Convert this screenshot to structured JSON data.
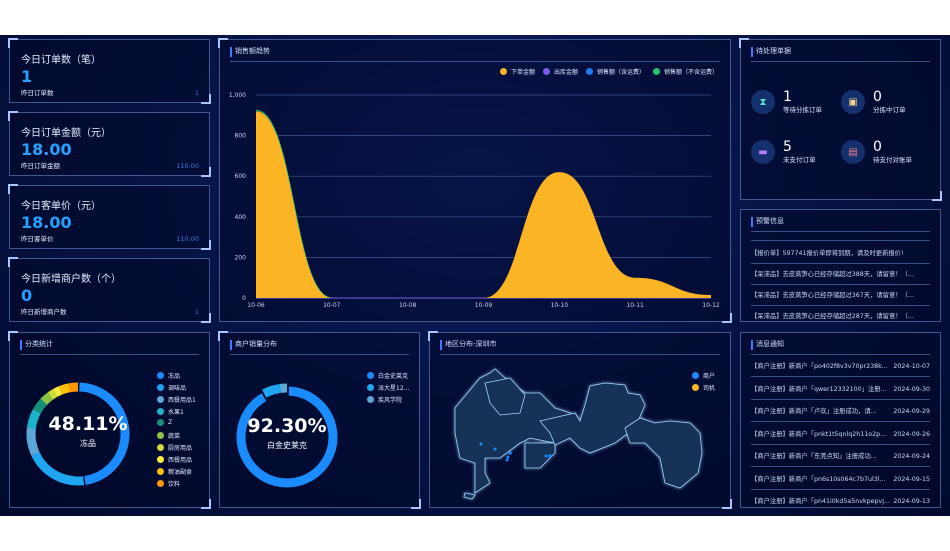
{
  "stats": [
    {
      "title": "今日订单数（笔）",
      "value": "1",
      "sub_label": "昨日订单数",
      "sub_value": "1"
    },
    {
      "title": "今日订单金额（元）",
      "value": "18.00",
      "sub_label": "昨日订单金额",
      "sub_value": "110.00"
    },
    {
      "title": "今日客单价（元）",
      "value": "18.00",
      "sub_label": "昨日客单价",
      "sub_value": "110.00"
    },
    {
      "title": "今日新增商户数（个）",
      "value": "0",
      "sub_label": "昨日新增商户数",
      "sub_value": "1"
    }
  ],
  "trend": {
    "title": "销售额趋势"
  },
  "chart_data": [
    {
      "type": "area",
      "title": "销售额趋势",
      "categories": [
        "10-06",
        "10-07",
        "10-08",
        "10-09",
        "10-10",
        "10-11",
        "10-12"
      ],
      "yticks": [
        "0",
        "200",
        "400",
        "600",
        "800",
        "1,000"
      ],
      "ylim": [
        0,
        1000
      ],
      "grid": true,
      "legend": "top-right",
      "series": [
        {
          "name": "下单金额",
          "color": "#fbb524",
          "values": [
            920,
            0,
            0,
            0,
            620,
            100,
            15
          ]
        },
        {
          "name": "出库金额",
          "color": "#7b5cf0",
          "values": [
            0,
            0,
            0,
            0,
            0,
            0,
            0
          ]
        },
        {
          "name": "销售额（含运费）",
          "color": "#1c7cf5",
          "values": [
            0,
            0,
            0,
            0,
            0,
            0,
            0
          ]
        },
        {
          "name": "销售额（不含运费）",
          "color": "#22c46b",
          "values": [
            925,
            0,
            0,
            0,
            0,
            0,
            0
          ]
        }
      ]
    },
    {
      "type": "pie",
      "title": "分类统计",
      "center_value": "48.11%",
      "center_label": "冻品",
      "slices": [
        {
          "name": "冻品",
          "value": 48.11,
          "color": "#1a8cff"
        },
        {
          "name": "调味品",
          "value": 19.89,
          "color": "#1ea6f0"
        },
        {
          "name": "西餐用品1",
          "value": 9,
          "color": "#5aa7d8"
        },
        {
          "name": "水果1",
          "value": 6,
          "color": "#1bb3c9"
        },
        {
          "name": "Z",
          "value": 4,
          "color": "#13907a"
        },
        {
          "name": "蔬菜",
          "value": 3,
          "color": "#8bc34a"
        },
        {
          "name": "厨房用品",
          "value": 2,
          "color": "#cddc39"
        },
        {
          "name": "西餐用品",
          "value": 2,
          "color": "#ffeb3b"
        },
        {
          "name": "粮油副食",
          "value": 3,
          "color": "#ffc107"
        },
        {
          "name": "饮料",
          "value": 3,
          "color": "#ff9800"
        }
      ]
    },
    {
      "type": "pie",
      "title": "商户销量分布",
      "center_value": "92.30%",
      "center_label": "白金史莱克",
      "slices": [
        {
          "name": "白金史莱克",
          "value": 92.3,
          "color": "#1a8cff"
        },
        {
          "name": "派大星12...",
          "value": 5.5,
          "color": "#1ea6f0"
        },
        {
          "name": "疾风学院",
          "value": 2.2,
          "color": "#5aa7d8"
        }
      ]
    }
  ],
  "pending": {
    "title": "待处理单据",
    "items": [
      {
        "value": "1",
        "label": "等待分拣订单",
        "icon": "hourglass-icon",
        "color": "#5de0d0",
        "glyph": "⧗"
      },
      {
        "value": "0",
        "label": "分拣中订单",
        "icon": "box-icon",
        "color": "#f6d58a",
        "glyph": "▣"
      },
      {
        "value": "5",
        "label": "未支付订单",
        "icon": "wallet-icon",
        "color": "#b57cff",
        "glyph": "▬"
      },
      {
        "value": "0",
        "label": "待支付对账单",
        "icon": "bill-icon",
        "color": "#ff7a8a",
        "glyph": "▤"
      }
    ]
  },
  "warnings": {
    "title": "预警信息",
    "items": [
      "【报价单】597741报价单即将到期，请及时更新报价!",
      "【呆滞品】去皮莴笋心已经存储超过388天，请留意！（...",
      "【呆滞品】去皮莴笋心已经存储超过367天，请留意！（...",
      "【呆滞品】去皮莴笋心已经存储超过287天，请留意！（..."
    ]
  },
  "map": {
    "title": "地区分布-深圳市",
    "legend": [
      {
        "name": "商户",
        "color": "#1a8cff"
      },
      {
        "name": "司机",
        "color": "#fbb524"
      }
    ]
  },
  "notices": {
    "title": "消息通知",
    "items": [
      {
        "text": "【商户注册】新商户「po402f8v3v70pr238k...",
        "date": "2024-10-07"
      },
      {
        "text": "【商户注册】新商户「qwer12332100」注册...",
        "date": "2024-09-30"
      },
      {
        "text": "【商户注册】新商户「卢欢」注册成功，请...",
        "date": "2024-09-29"
      },
      {
        "text": "【商户注册】新商户「pnkt1t5qnlq2h11o2p...",
        "date": "2024-09-26"
      },
      {
        "text": "【商户注册】新商户「东莞点知」注册成功...",
        "date": "2024-09-24"
      },
      {
        "text": "【商户注册】新商户「pn6s10s064c7b7ul3l...",
        "date": "2024-09-15"
      },
      {
        "text": "【商户注册】新商户「pn41i0kd5a5nvkpepvj...",
        "date": "2024-09-13"
      }
    ]
  }
}
